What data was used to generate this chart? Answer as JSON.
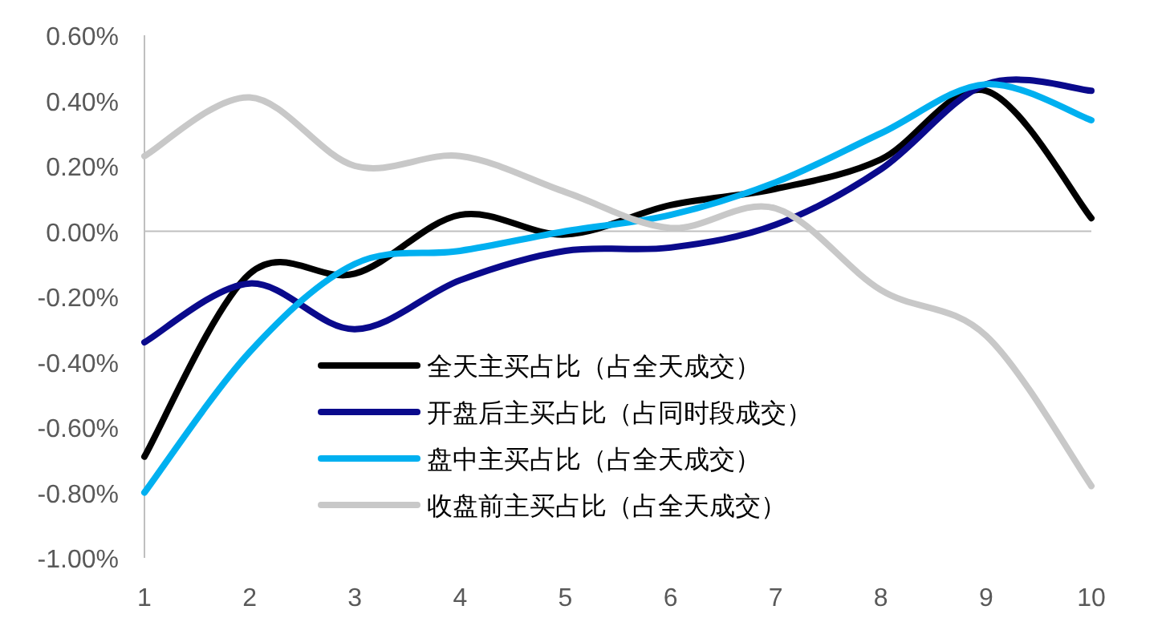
{
  "chart_data": {
    "type": "line",
    "categories": [
      "1",
      "2",
      "3",
      "4",
      "5",
      "6",
      "7",
      "8",
      "9",
      "10"
    ],
    "series": [
      {
        "name": "全天主买占比（占全天成交）",
        "color": "#000000",
        "values": [
          -0.69,
          -0.13,
          -0.13,
          0.05,
          -0.01,
          0.08,
          0.13,
          0.22,
          0.43,
          0.04
        ]
      },
      {
        "name": "开盘后主买占比（占同时段成交）",
        "color": "#0a0a8c",
        "values": [
          -0.34,
          -0.16,
          -0.3,
          -0.15,
          -0.06,
          -0.05,
          0.02,
          0.19,
          0.45,
          0.43
        ]
      },
      {
        "name": "盘中主买占比（占全天成交）",
        "color": "#00b0f0",
        "values": [
          -0.8,
          -0.37,
          -0.1,
          -0.06,
          0.0,
          0.05,
          0.15,
          0.3,
          0.45,
          0.34
        ]
      },
      {
        "name": "收盘前主买占比（占全天成交）",
        "color": "#c8c8c8",
        "values": [
          0.23,
          0.41,
          0.2,
          0.23,
          0.12,
          0.01,
          0.07,
          -0.18,
          -0.32,
          -0.78
        ]
      }
    ],
    "ylim": [
      -1.0,
      0.6
    ],
    "yticks": [
      {
        "value": -1.0,
        "label": "-1.00%"
      },
      {
        "value": -0.8,
        "label": "-0.80%"
      },
      {
        "value": -0.6,
        "label": "-0.60%"
      },
      {
        "value": -0.4,
        "label": "-0.40%"
      },
      {
        "value": -0.2,
        "label": "-0.20%"
      },
      {
        "value": 0,
        "label": "0.00%"
      },
      {
        "value": 0.2,
        "label": "0.20%"
      },
      {
        "value": 0.4,
        "label": "0.40%"
      },
      {
        "value": 0.6,
        "label": "0.60%"
      }
    ],
    "legend": "bottom",
    "marker": "none",
    "line_style": "solid"
  }
}
